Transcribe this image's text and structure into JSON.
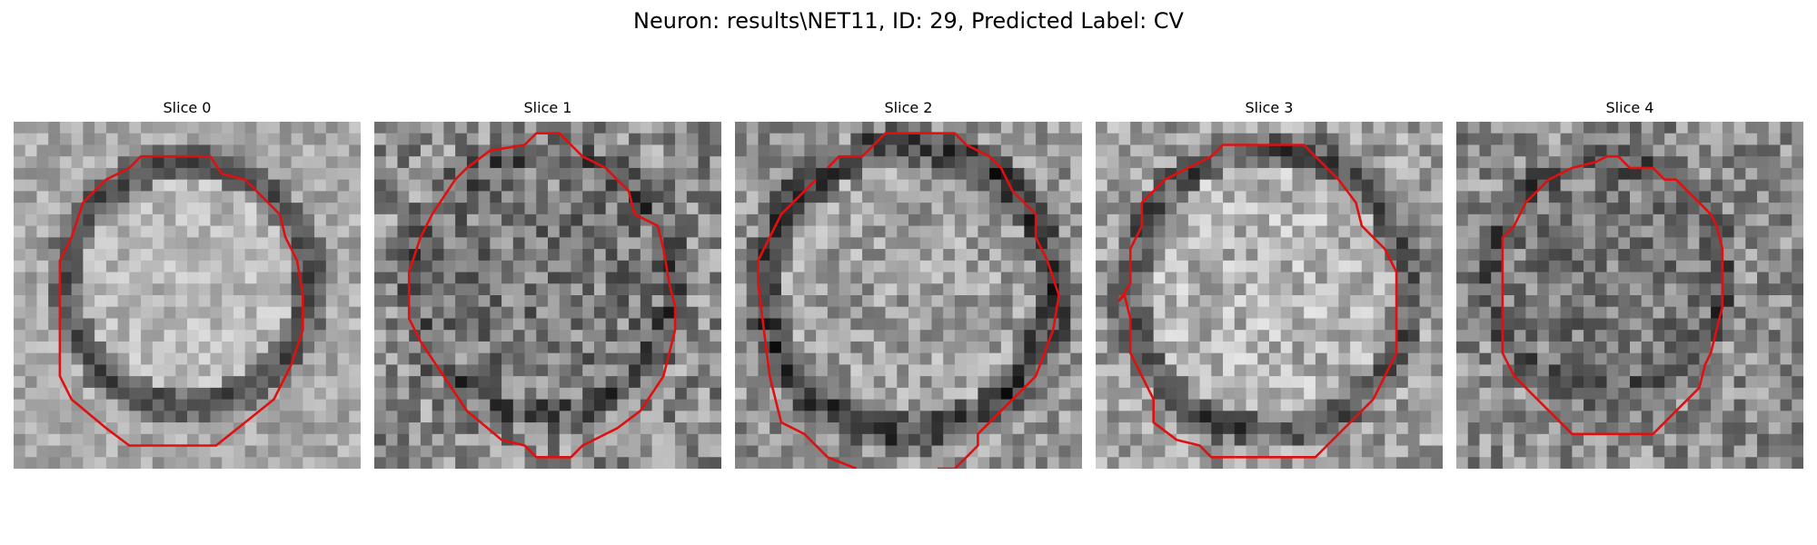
{
  "figure": {
    "title": "Neuron: results\\NET11, ID: 29, Predicted Label: CV"
  },
  "overlay_color": "#e01010",
  "panels": [
    {
      "title": "Slice 0"
    },
    {
      "title": "Slice 1"
    },
    {
      "title": "Slice 2"
    },
    {
      "title": "Slice 3"
    },
    {
      "title": "Slice 4"
    }
  ]
}
